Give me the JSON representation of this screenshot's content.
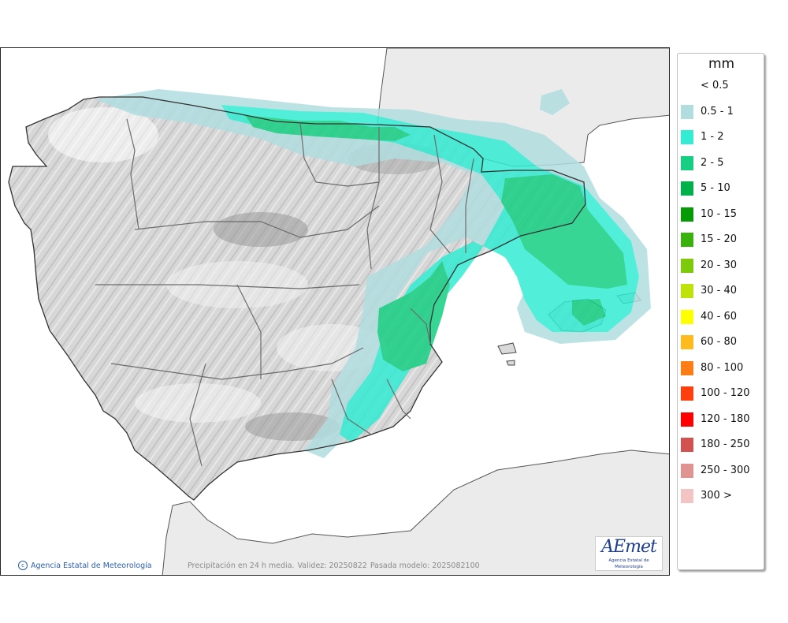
{
  "map": {
    "caption": {
      "text": "Precipitación en 24 h media.",
      "validity": "Validez: 20250822",
      "model_run": "Pasada modelo: 2025082100"
    },
    "copyright": "Agencia Estatal de Meteorología",
    "logo": {
      "wordmark": "AEmet",
      "subtitle": "Agencia Estatal de Meteorología"
    },
    "colors": {
      "land": "#d6d6d6",
      "outside_land": "#ebebeb",
      "sea": "#ffffff"
    }
  },
  "legend": {
    "unit": "mm",
    "classes": [
      {
        "label": "< 0.5",
        "color": ""
      },
      {
        "label": "0.5 - 1",
        "color": "#b1dde0"
      },
      {
        "label": "1 - 2",
        "color": "#33ecd4"
      },
      {
        "label": "2 - 5",
        "color": "#16cf83"
      },
      {
        "label": "5 - 10",
        "color": "#00b14b"
      },
      {
        "label": "10 - 15",
        "color": "#079a07"
      },
      {
        "label": "15 - 20",
        "color": "#3ab10d"
      },
      {
        "label": "20 - 30",
        "color": "#7dca0b"
      },
      {
        "label": "30 - 40",
        "color": "#bfe20b"
      },
      {
        "label": "40 - 60",
        "color": "#ffff00"
      },
      {
        "label": "60 - 80",
        "color": "#ffbb1d"
      },
      {
        "label": "80 - 100",
        "color": "#ff7d16"
      },
      {
        "label": "100 - 120",
        "color": "#ff400e"
      },
      {
        "label": "120 - 180",
        "color": "#ff0000"
      },
      {
        "label": "180 - 250",
        "color": "#d25151"
      },
      {
        "label": "250 - 300",
        "color": "#e09393"
      },
      {
        "label": "300 >",
        "color": "#f2c4c4"
      }
    ]
  }
}
